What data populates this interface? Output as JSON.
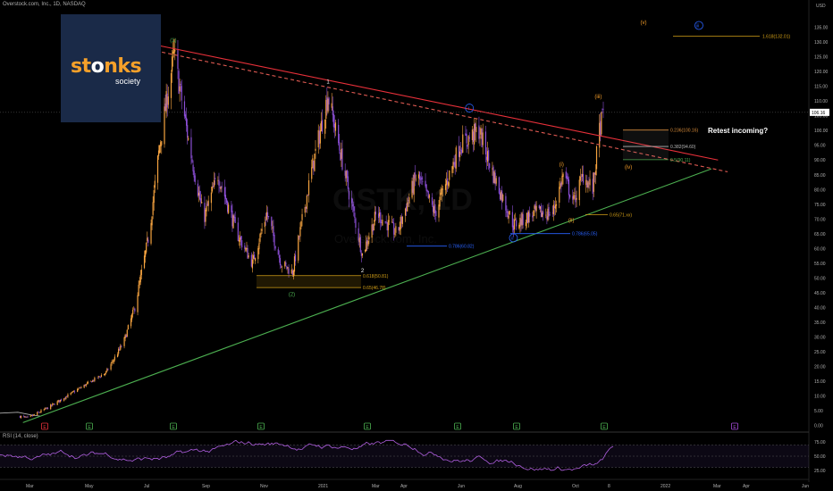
{
  "header": {
    "symbol_line": "Overstock.com, Inc., 1D, NASDAQ",
    "currency": "USD"
  },
  "logo": {
    "word": "stonks",
    "sub": "society"
  },
  "annotation": {
    "callout": "Retest incoming?"
  },
  "rsi": {
    "label": "RSI (14, close)",
    "ticks": [
      "75.00",
      "50.00",
      "25.00"
    ]
  },
  "colors": {
    "up": "#f7a440",
    "down": "#8c4fd6",
    "resistance": "#e8303a",
    "midline": "#e05a52",
    "support": "#4caf50",
    "fib": "#d4a017",
    "wave_green": "#4caf50",
    "wave_blue": "#2962ff",
    "wave_orange": "#f59e2a",
    "last_price": "#ffffff",
    "rsi_line": "#b05fe0"
  },
  "chart_data": {
    "type": "candlestick",
    "ylabel": "USD",
    "y_ticks": [
      0,
      5,
      10,
      15,
      20,
      25,
      30,
      35,
      40,
      45,
      50,
      55,
      60,
      65,
      70,
      75,
      80,
      85,
      90,
      95,
      100,
      105,
      110,
      115,
      120,
      125,
      130,
      135
    ],
    "ylim": [
      -1,
      140
    ],
    "x_tick_labels": [
      "Mar",
      "May",
      "Jul",
      "Sep",
      "Nov",
      "2021",
      "Mar",
      "Apr",
      "Jun",
      "Aug",
      "Oct",
      "8",
      "2022",
      "Mar",
      "Apr",
      "Jun"
    ],
    "last_price_label": "106.16",
    "price_path": [
      {
        "date": "2020-03-01",
        "price": 4
      },
      {
        "date": "2020-03-20",
        "price": 2.5
      },
      {
        "date": "2020-04-10",
        "price": 6
      },
      {
        "date": "2020-05-10",
        "price": 12
      },
      {
        "date": "2020-06-10",
        "price": 18
      },
      {
        "date": "2020-06-28",
        "price": 28
      },
      {
        "date": "2020-07-10",
        "price": 40
      },
      {
        "date": "2020-07-25",
        "price": 65
      },
      {
        "date": "2020-08-05",
        "price": 95
      },
      {
        "date": "2020-08-20",
        "price": 126
      },
      {
        "date": "2020-09-05",
        "price": 95
      },
      {
        "date": "2020-09-20",
        "price": 70
      },
      {
        "date": "2020-10-05",
        "price": 85
      },
      {
        "date": "2020-10-25",
        "price": 65
      },
      {
        "date": "2020-11-10",
        "price": 55
      },
      {
        "date": "2020-11-25",
        "price": 72
      },
      {
        "date": "2020-12-10",
        "price": 55
      },
      {
        "date": "2020-12-22",
        "price": 52
      },
      {
        "date": "2021-01-10",
        "price": 85
      },
      {
        "date": "2021-01-28",
        "price": 112
      },
      {
        "date": "2021-02-15",
        "price": 85
      },
      {
        "date": "2021-03-05",
        "price": 58
      },
      {
        "date": "2021-03-20",
        "price": 72
      },
      {
        "date": "2021-04-10",
        "price": 65
      },
      {
        "date": "2021-05-01",
        "price": 85
      },
      {
        "date": "2021-05-20",
        "price": 72
      },
      {
        "date": "2021-06-15",
        "price": 95
      },
      {
        "date": "2021-07-05",
        "price": 100
      },
      {
        "date": "2021-07-20",
        "price": 85
      },
      {
        "date": "2021-08-10",
        "price": 68
      },
      {
        "date": "2021-09-01",
        "price": 72
      },
      {
        "date": "2021-09-20",
        "price": 72
      },
      {
        "date": "2021-10-01",
        "price": 85
      },
      {
        "date": "2021-10-12",
        "price": 76
      },
      {
        "date": "2021-10-22",
        "price": 85
      },
      {
        "date": "2021-11-01",
        "price": 80
      },
      {
        "date": "2021-11-08",
        "price": 100
      },
      {
        "date": "2021-11-12",
        "price": 106
      }
    ],
    "trendlines": [
      {
        "name": "resistance",
        "from": {
          "date": "2020-08-01",
          "price": 129
        },
        "to": {
          "date": "2022-03-12",
          "price": 90
        }
      },
      {
        "name": "mid-dashed",
        "from": {
          "date": "2020-08-01",
          "price": 127
        },
        "to": {
          "date": "2022-03-22",
          "price": 86
        }
      },
      {
        "name": "support",
        "from": {
          "date": "2020-03-15",
          "price": 1
        },
        "to": {
          "date": "2022-03-05",
          "price": 87
        }
      }
    ],
    "fib_levels": [
      {
        "label": "1.618(132.01)",
        "price": 132.01
      },
      {
        "label": "0.236(100.16)",
        "price": 100.16
      },
      {
        "label": "0.382(94.60)",
        "price": 94.6
      },
      {
        "label": "0.5(90.11)",
        "price": 90.11
      },
      {
        "label": "0.618(50.81)",
        "price": 50.81
      },
      {
        "label": "0.65(46.78)",
        "price": 46.78
      },
      {
        "label": "0.786(60.82)",
        "price": 60.82
      },
      {
        "label": "0.786(65.05)",
        "price": 65.05
      },
      {
        "label": "0.65(71.xx)",
        "price": 71.5
      }
    ],
    "wave_labels": [
      {
        "text": "(1)",
        "date": "2020-08-20",
        "price": 130
      },
      {
        "text": "(2)",
        "date": "2020-12-22",
        "price": 44
      },
      {
        "text": "1",
        "date": "2021-01-28",
        "price": 116
      },
      {
        "text": "2",
        "date": "2021-03-05",
        "price": 52
      },
      {
        "text": "i",
        "date": "2021-06-25",
        "price": 107
      },
      {
        "text": "ii",
        "date": "2021-08-10",
        "price": 63
      },
      {
        "text": "iii",
        "date": "2022-02-20",
        "price": 135
      },
      {
        "text": "(i)",
        "date": "2021-10-01",
        "price": 88
      },
      {
        "text": "(ii)",
        "date": "2021-10-12",
        "price": 69
      },
      {
        "text": "(iii)",
        "date": "2021-11-10",
        "price": 111
      },
      {
        "text": "(iv)",
        "date": "2021-12-10",
        "price": 87
      },
      {
        "text": "(v)",
        "date": "2021-12-25",
        "price": 136
      }
    ]
  }
}
